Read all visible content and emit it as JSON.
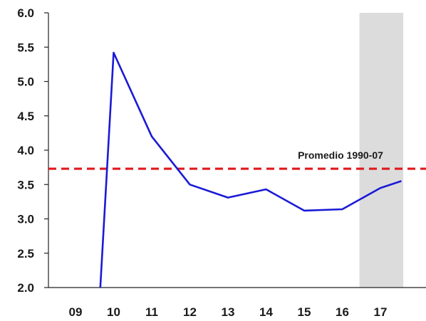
{
  "chart_data": {
    "type": "line",
    "categories": [
      "09",
      "10",
      "11",
      "12",
      "13",
      "14",
      "15",
      "16",
      "17"
    ],
    "ylim": [
      2.0,
      6.0
    ],
    "y_ticks": [
      "2.0",
      "2.5",
      "3.0",
      "3.5",
      "4.0",
      "4.5",
      "5.0",
      "5.5",
      "6.0"
    ],
    "grid": false,
    "series": [
      {
        "color": "#1a1ad6",
        "points": [
          {
            "x": 2009.65,
            "y": 2.0
          },
          {
            "x": 2010.0,
            "y": 5.42
          },
          {
            "x": 2011.0,
            "y": 4.2
          },
          {
            "x": 2012.0,
            "y": 3.5
          },
          {
            "x": 2013.0,
            "y": 3.31
          },
          {
            "x": 2014.0,
            "y": 3.43
          },
          {
            "x": 2015.0,
            "y": 3.12
          },
          {
            "x": 2016.0,
            "y": 3.14
          },
          {
            "x": 2017.0,
            "y": 3.45
          },
          {
            "x": 2017.55,
            "y": 3.55
          }
        ]
      }
    ],
    "reference_line": {
      "label": "Promedio 1990-07",
      "value": 3.73,
      "color": "#e0191c",
      "style": "dashed"
    },
    "shaded_region": {
      "x_from": 2016.45,
      "x_to": 2017.6,
      "color": "#dcdcdc"
    }
  }
}
